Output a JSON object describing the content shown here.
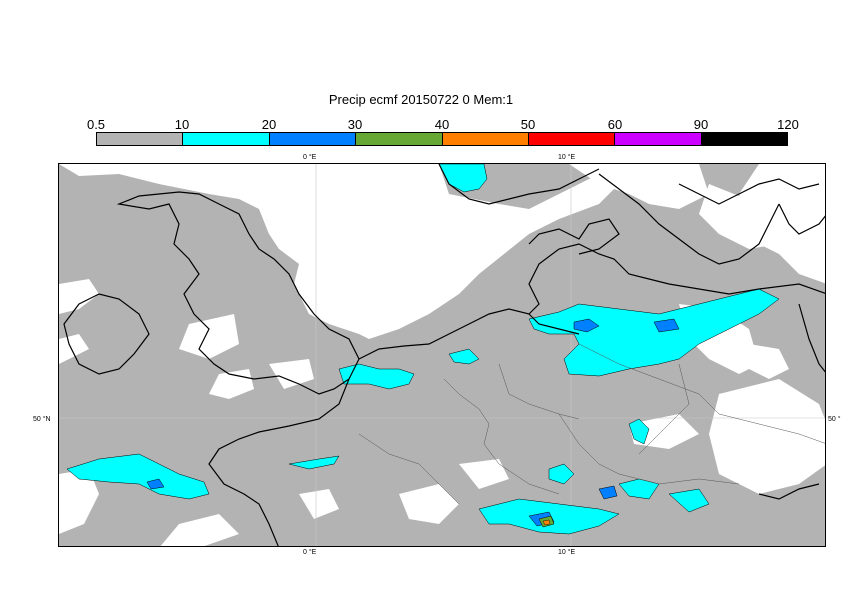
{
  "title": "Precip ecmf 20150722 0 Mem:1",
  "colorbar": {
    "levels": [
      "0.5",
      "10",
      "20",
      "30",
      "40",
      "50",
      "60",
      "90",
      "120"
    ],
    "colors": [
      "#b3b3b3",
      "#00ffff",
      "#0080ff",
      "#66a833",
      "#ff8000",
      "#ff0000",
      "#cc00ff",
      "#000000"
    ]
  },
  "axes": {
    "lon_top": [
      "0 °E",
      "10 °E"
    ],
    "lon_bottom": [
      "0 °E",
      "10 °E"
    ],
    "lat_left": [
      "50 °N"
    ],
    "lat_right": [
      "50 °"
    ]
  },
  "colors": {
    "no_precip": "#ffffff",
    "land_outline": "#000000",
    "borders": "#555555",
    "grid": "#c8c8c8"
  }
}
